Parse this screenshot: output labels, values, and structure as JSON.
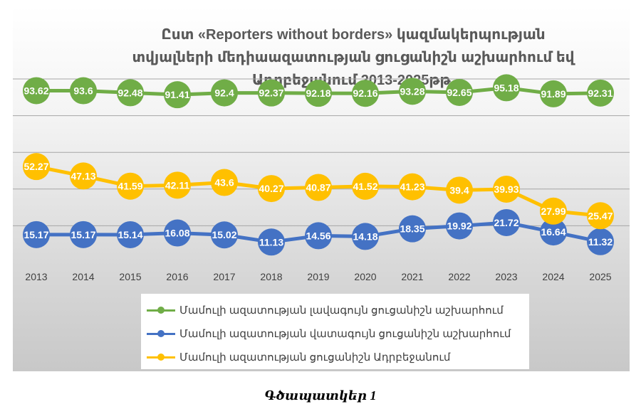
{
  "chart_data": {
    "type": "line",
    "title_lines": [
      "Ըստ «Reporters without borders» կազմակերպության",
      "տվյալների մեդիաազատության ցուցանիշն աշխարհում եվ",
      "Ադրբեջանում 2013-2025թթ."
    ],
    "categories": [
      "2013",
      "2014",
      "2015",
      "2016",
      "2017",
      "2018",
      "2019",
      "2020",
      "2021",
      "2022",
      "2023",
      "2024",
      "2025"
    ],
    "series": [
      {
        "name": "Մամուլի ազատության լավագույն ցուցանիշն աշխարհում",
        "color": "#70ad47",
        "values": [
          93.62,
          93.6,
          92.48,
          91.41,
          92.4,
          92.37,
          92.18,
          92.16,
          93.28,
          92.65,
          95.18,
          91.89,
          92.31
        ],
        "labels": [
          "93.62",
          "93.6",
          "92.48",
          "91.41",
          "92.4",
          "92.37",
          "92.18",
          "92.16",
          "93.28",
          "92.65",
          "95.18",
          "91.89",
          "92.31"
        ]
      },
      {
        "name": "Մամուլի ազատության վատագույն ցուցանիշն աշխարհում",
        "color": "#4472c4",
        "values": [
          15.17,
          15.17,
          15.14,
          16.08,
          15.02,
          11.13,
          14.56,
          14.18,
          18.35,
          19.92,
          21.72,
          16.64,
          11.32
        ],
        "labels": [
          "15.17",
          "15.17",
          "15.14",
          "16.08",
          "15.02",
          "11.13",
          "14.56",
          "14.18",
          "18.35",
          "19.92",
          "21.72",
          "16.64",
          "11.32"
        ]
      },
      {
        "name": "Մամուլի ազատության ցուցանիշն Ադրբեջանում",
        "color": "#ffc000",
        "values": [
          52.27,
          47.13,
          41.59,
          42.11,
          43.6,
          40.27,
          40.87,
          41.52,
          41.23,
          39.4,
          39.93,
          27.99,
          25.47
        ],
        "labels": [
          "52.27",
          "47.13",
          "41.59",
          "42.11",
          "43.6",
          "40.27",
          "40.87",
          "41.52",
          "41.23",
          "39.4",
          "39.93",
          "27.99",
          "25.47"
        ]
      }
    ],
    "legend_position": "bottom",
    "grid": true
  },
  "caption": "Գծապատկեր 1"
}
